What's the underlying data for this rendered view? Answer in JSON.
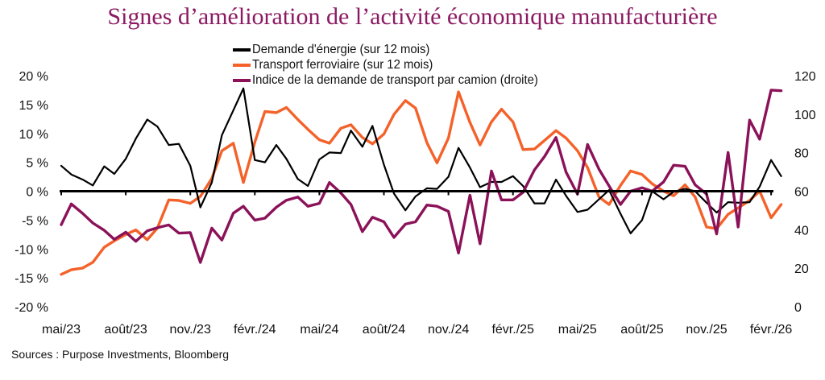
{
  "chart_data": {
    "type": "line",
    "title": "Signes d’amélioration de l’activité économique manufacturière",
    "source": "Sources : Purpose Investments, Bloomberg",
    "x": [
      "2023-05-01",
      "2023-05-15",
      "2023-06-01",
      "2023-06-15",
      "2023-07-01",
      "2023-07-15",
      "2023-08-01",
      "2023-08-15",
      "2023-09-01",
      "2023-09-15",
      "2023-10-01",
      "2023-10-15",
      "2023-11-01",
      "2023-11-15",
      "2023-12-01",
      "2023-12-15",
      "2024-01-01",
      "2024-01-15",
      "2024-02-01",
      "2024-02-15",
      "2024-03-01",
      "2024-03-15",
      "2024-04-01",
      "2024-04-15",
      "2024-05-01",
      "2024-05-15",
      "2024-06-01",
      "2024-06-15",
      "2024-07-01",
      "2024-07-15",
      "2024-08-01",
      "2024-08-15",
      "2024-09-01",
      "2024-09-15",
      "2024-10-01",
      "2024-10-15",
      "2024-11-01",
      "2024-11-15",
      "2024-12-01",
      "2024-12-15",
      "2025-01-01",
      "2025-01-15",
      "2025-02-01",
      "2025-02-15",
      "2025-03-01",
      "2025-03-15",
      "2025-04-01",
      "2025-04-15",
      "2025-05-01",
      "2025-05-15",
      "2025-06-01",
      "2025-06-15",
      "2025-07-01",
      "2025-07-15",
      "2025-08-01",
      "2025-08-15",
      "2025-09-01",
      "2025-09-15",
      "2025-10-01",
      "2025-10-15",
      "2025-11-01",
      "2025-11-15",
      "2025-12-01",
      "2025-12-15",
      "2026-01-01",
      "2026-01-15",
      "2026-02-01",
      "2026-02-15"
    ],
    "x_tick_labels": [
      "mai/23",
      "août/23",
      "nov./23",
      "févr./24",
      "mai/24",
      "août/24",
      "nov./24",
      "févr./25",
      "mai/25",
      "août/25",
      "nov./25",
      "févr./26"
    ],
    "x_tick_dates": [
      "2023-05-01",
      "2023-08-01",
      "2023-11-01",
      "2024-02-01",
      "2024-05-01",
      "2024-08-01",
      "2024-11-01",
      "2025-02-01",
      "2025-05-01",
      "2025-08-01",
      "2025-11-01",
      "2026-02-01"
    ],
    "y_left": {
      "lim": [
        -20,
        20
      ],
      "ticks": [
        20,
        15,
        10,
        5,
        0,
        -5,
        -10,
        -15,
        -20
      ],
      "tick_labels": [
        "20 %",
        "15 %",
        "10 %",
        "5 %",
        "0 %",
        "-5 %",
        "-10 %",
        "-15 %",
        "-20 %"
      ]
    },
    "y_right": {
      "lim": [
        0,
        120
      ],
      "ticks": [
        120,
        100,
        80,
        60,
        40,
        20,
        0
      ],
      "tick_labels": [
        "120",
        "100",
        "80",
        "60",
        "40",
        "20",
        "0"
      ]
    },
    "grid": false,
    "legend_position": "top-center",
    "series": [
      {
        "name": "Demande d'énergie (sur 12 mois)",
        "axis": "left",
        "color": "#000000",
        "values": [
          4.4,
          2.9,
          2.0,
          1.0,
          4.3,
          3.0,
          5.6,
          9.1,
          12.4,
          11.2,
          8.0,
          8.2,
          4.4,
          -2.8,
          1.5,
          9.7,
          14.0,
          17.8,
          5.4,
          5.0,
          8.0,
          5.6,
          2.1,
          0.9,
          5.5,
          6.7,
          6.6,
          10.5,
          7.7,
          11.3,
          4.6,
          -0.4,
          -3.3,
          -0.9,
          0.5,
          0.4,
          2.5,
          7.5,
          4.1,
          0.7,
          1.6,
          1.6,
          2.6,
          0.9,
          -2.1,
          -2.1,
          2.0,
          -0.8,
          -3.6,
          -3.2,
          -1.4,
          0.2,
          -3.9,
          -7.3,
          -5.0,
          0.0,
          -1.4,
          -0.1,
          0.4,
          0.0,
          -2.0,
          -3.7,
          -1.9,
          -2.0,
          -1.9,
          0.8,
          5.4,
          2.6
        ]
      },
      {
        "name": "Transport ferroviaire (sur 12 mois)",
        "axis": "left",
        "color": "#F4622A",
        "values": [
          -14.4,
          -13.6,
          -13.3,
          -12.3,
          -9.7,
          -8.6,
          -7.5,
          -6.7,
          -8.4,
          -6.4,
          -1.5,
          -1.6,
          -2.1,
          -0.9,
          2.2,
          7.0,
          8.3,
          1.5,
          8.5,
          13.8,
          13.6,
          14.5,
          12.4,
          10.7,
          8.9,
          8.3,
          10.9,
          11.5,
          9.3,
          8.2,
          9.9,
          13.3,
          15.7,
          14.4,
          8.4,
          4.9,
          9.2,
          17.2,
          11.9,
          8.0,
          12.0,
          14.2,
          12.0,
          7.2,
          7.3,
          8.8,
          10.5,
          9.2,
          7.0,
          4.1,
          -1.0,
          -2.3,
          1.0,
          3.5,
          2.9,
          1.3,
          0.0,
          -0.8,
          1.1,
          -1.0,
          -6.2,
          -6.5,
          -4.0,
          -2.9,
          -1.6,
          0.0,
          -4.6,
          -2.3
        ]
      },
      {
        "name": "Indice de la demande de transport par camion (droite)",
        "axis": "right",
        "color": "#8B1259",
        "values": [
          42.6,
          53.4,
          48.4,
          43.5,
          39.7,
          35.0,
          38.7,
          34.0,
          39.4,
          41.0,
          42.5,
          38.2,
          38.5,
          23.0,
          40.8,
          34.6,
          48.6,
          52.2,
          45.0,
          46.0,
          51.7,
          55.3,
          57.0,
          52.2,
          53.7,
          64.5,
          59.1,
          53.1,
          39.0,
          46.5,
          44.1,
          36.0,
          42.9,
          44.1,
          52.8,
          52.2,
          49.5,
          27.9,
          57.9,
          32.7,
          70.5,
          55.5,
          55.5,
          59.4,
          71.1,
          78.0,
          87.9,
          69.9,
          58.5,
          84.3,
          71.4,
          62.7,
          53.1,
          60.0,
          61.8,
          60.0,
          64.8,
          73.5,
          72.9,
          63.3,
          58.5,
          37.8,
          80.1,
          41.4,
          96.9,
          87.0,
          112.5,
          112.2
        ]
      }
    ]
  }
}
